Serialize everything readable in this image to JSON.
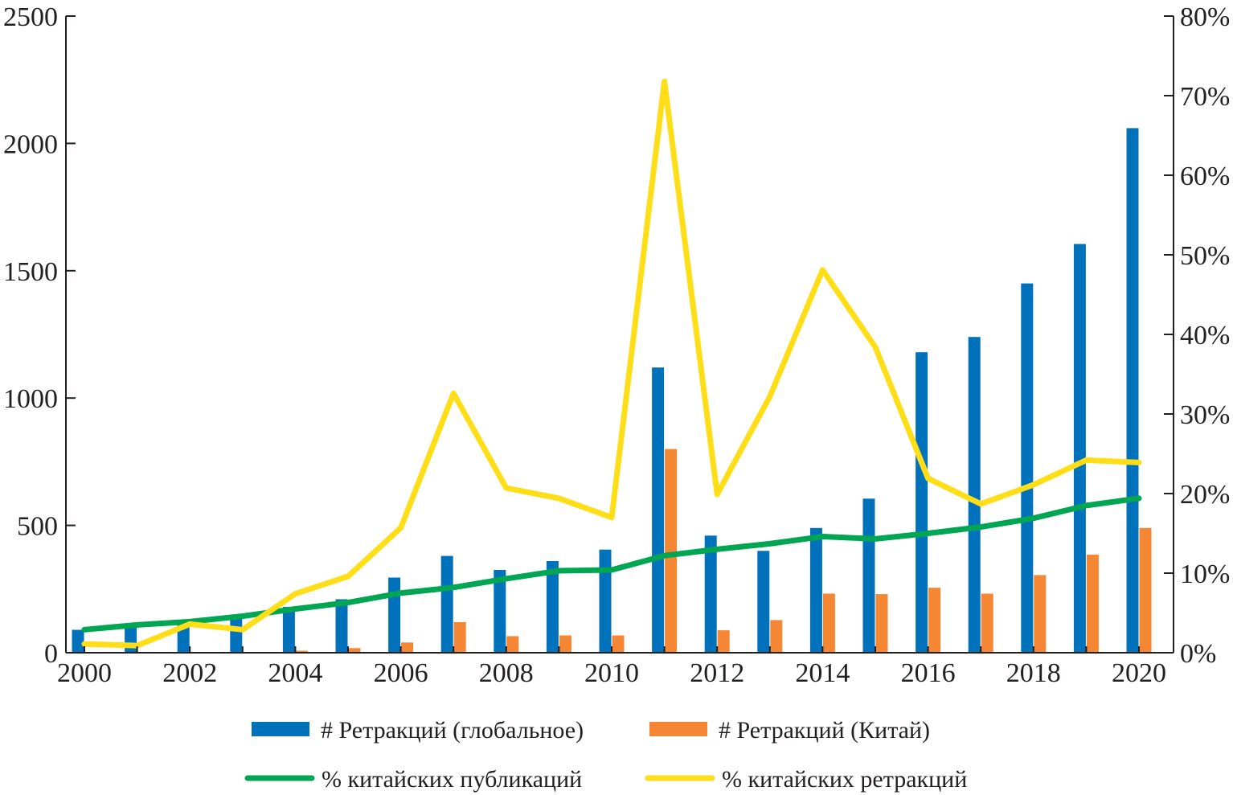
{
  "chart_data": {
    "type": "bar",
    "title": "",
    "xlabel": "",
    "ylabel": "",
    "ylabel_right": "",
    "categories": [
      2000,
      2001,
      2002,
      2003,
      2004,
      2005,
      2006,
      2007,
      2008,
      2009,
      2010,
      2011,
      2012,
      2013,
      2014,
      2015,
      2016,
      2017,
      2018,
      2019,
      2020
    ],
    "x_tick_labels": [
      "2000",
      "2002",
      "2004",
      "2006",
      "2008",
      "2010",
      "2012",
      "2014",
      "2016",
      "2018",
      "2020"
    ],
    "ylim_left": [
      0,
      2500
    ],
    "y_ticks_left": [
      "0",
      "500",
      "1000",
      "1500",
      "2000",
      "2500"
    ],
    "ylim_right": [
      0,
      80
    ],
    "y_ticks_right": [
      "0%",
      "10%",
      "20%",
      "30%",
      "40%",
      "50%",
      "60%",
      "70%",
      "80%"
    ],
    "series": [
      {
        "name": "# Ретракций (глобальное)",
        "kind": "bar",
        "axis": "left",
        "color": "#0072bc",
        "values": [
          90,
          105,
          110,
          135,
          180,
          210,
          295,
          380,
          325,
          360,
          405,
          1120,
          460,
          400,
          490,
          605,
          1180,
          1240,
          1450,
          1605,
          2060
        ]
      },
      {
        "name": "# Ретракций (Китай)",
        "kind": "bar",
        "axis": "left",
        "color": "#f58634",
        "values": [
          0,
          0,
          0,
          0,
          8,
          18,
          40,
          120,
          65,
          68,
          68,
          800,
          88,
          128,
          232,
          230,
          255,
          232,
          305,
          385,
          490
        ]
      },
      {
        "name": "% китайских публикаций",
        "kind": "line",
        "axis": "right",
        "color": "#00a651",
        "values": [
          2.9,
          3.5,
          3.9,
          4.6,
          5.5,
          6.3,
          7.5,
          8.2,
          9.3,
          10.3,
          10.4,
          12.2,
          13.0,
          13.7,
          14.6,
          14.3,
          15.0,
          15.8,
          16.9,
          18.5,
          19.4
        ]
      },
      {
        "name": "% китайских ретракций",
        "kind": "line",
        "axis": "right",
        "color": "#ffde17",
        "values": [
          1.1,
          0.9,
          3.6,
          2.9,
          7.4,
          9.6,
          15.7,
          32.6,
          20.7,
          19.4,
          17.0,
          71.8,
          19.9,
          32.2,
          48.1,
          38.4,
          21.9,
          18.7,
          21.1,
          24.2,
          23.9
        ]
      }
    ],
    "legend_position": "bottom-center",
    "grid": false
  }
}
